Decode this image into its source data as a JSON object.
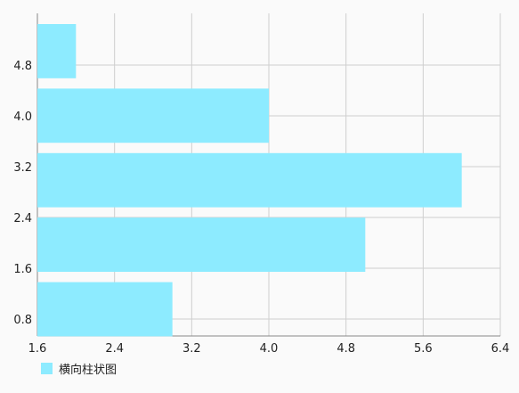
{
  "chart_data": {
    "type": "bar",
    "orientation": "horizontal",
    "series": [
      {
        "name": "横向柱状图",
        "values": [
          2.0,
          4.0,
          6.0,
          5.0,
          3.0
        ]
      }
    ],
    "bar_color": "#8debff",
    "xlim": [
      1.6,
      6.4
    ],
    "x_ticks": [
      "1.6",
      "2.4",
      "3.2",
      "4.0",
      "4.8",
      "5.6",
      "6.4"
    ],
    "y_ticks": [
      "4.8",
      "4.0",
      "3.2",
      "2.4",
      "1.6",
      "0.8"
    ],
    "grid": true,
    "legend_position": "bottom-left"
  }
}
